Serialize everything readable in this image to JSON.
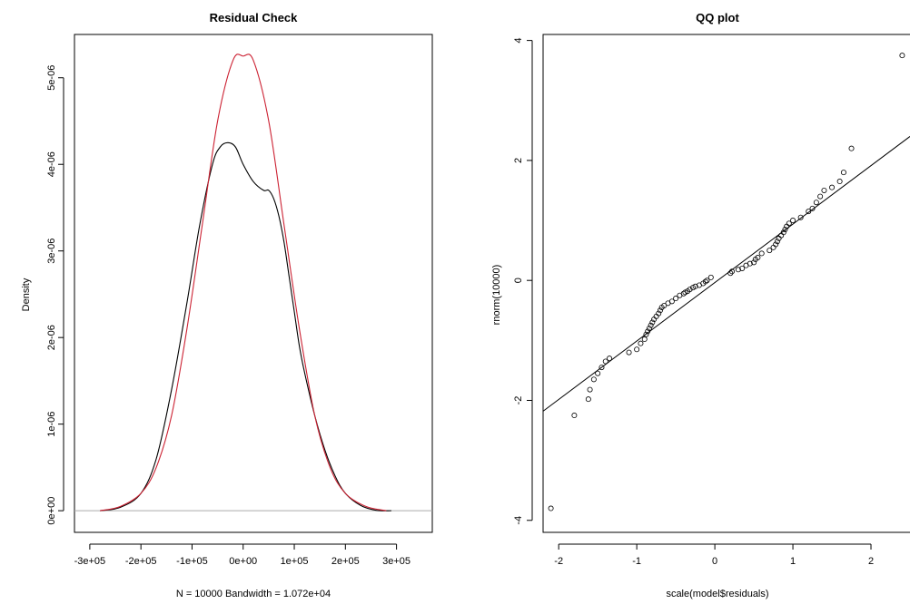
{
  "chart_data": [
    {
      "type": "line",
      "title": "Residual Check",
      "xlabel": "N = 10000   Bandwidth = 1.072e+04",
      "ylabel": "Density",
      "xlim": [
        -330000,
        370000
      ],
      "ylim": [
        -2.5e-07,
        5.5e-06
      ],
      "xticks": [
        -300000,
        -200000,
        -100000,
        0,
        100000,
        200000,
        300000
      ],
      "xtick_labels": [
        "-3e+05",
        "-2e+05",
        "-1e+05",
        "0e+00",
        "1e+05",
        "2e+05",
        "3e+05"
      ],
      "yticks": [
        0,
        1e-06,
        2e-06,
        3e-06,
        4e-06,
        5e-06
      ],
      "ytick_labels": [
        "0e+00",
        "1e-06",
        "2e-06",
        "3e-06",
        "4e-06",
        "5e-06"
      ],
      "hline": 0,
      "series": [
        {
          "color": "#000000",
          "x": [
            -280000,
            -240000,
            -200000,
            -170000,
            -140000,
            -110000,
            -85000,
            -60000,
            -45000,
            -30000,
            -15000,
            0,
            20000,
            40000,
            50000,
            60000,
            70000,
            80000,
            90000,
            100000,
            110000,
            120000,
            140000,
            160000,
            180000,
            200000,
            230000,
            260000,
            290000
          ],
          "y": [
            0.0,
            4e-08,
            2e-07,
            6e-07,
            1.4e-06,
            2.4e-06,
            3.3e-06,
            4e-06,
            4.2e-06,
            4.25e-06,
            4.2e-06,
            4e-06,
            3.8e-06,
            3.7e-06,
            3.7e-06,
            3.6e-06,
            3.4e-06,
            3.1e-06,
            2.7e-06,
            2.3e-06,
            1.9e-06,
            1.6e-06,
            1.1e-06,
            7e-07,
            4e-07,
            2e-07,
            6e-08,
            5e-09,
            0.0
          ]
        },
        {
          "color": "#cc2233",
          "x": [
            -280000,
            -240000,
            -200000,
            -170000,
            -140000,
            -110000,
            -80000,
            -50000,
            -20000,
            0,
            20000,
            50000,
            80000,
            110000,
            140000,
            170000,
            200000,
            240000,
            280000
          ],
          "y": [
            0.0,
            5e-08,
            2e-07,
            5e-07,
            1.1e-06,
            2.1e-06,
            3.3e-06,
            4.5e-06,
            5.2e-06,
            5.25e-06,
            5.2e-06,
            4.5e-06,
            3.3e-06,
            2.1e-06,
            1.1e-06,
            5e-07,
            2e-07,
            5e-08,
            0.0
          ]
        }
      ]
    },
    {
      "type": "scatter",
      "title": "QQ plot",
      "xlabel": "scale(model$residuals)",
      "ylabel": "rnorm(10000)",
      "xlim": [
        -2.2,
        2.5
      ],
      "ylim": [
        -4.2,
        4.1
      ],
      "xticks": [
        -2,
        -1,
        0,
        1,
        2
      ],
      "xtick_labels": [
        "-2",
        "-1",
        "0",
        "1",
        "2"
      ],
      "yticks": [
        -4,
        -2,
        0,
        2,
        4
      ],
      "ytick_labels": [
        "-4",
        "-2",
        "0",
        "2",
        "4"
      ],
      "reference_line": {
        "x": [
          -2.2,
          2.5
        ],
        "y": [
          -2.18,
          2.4
        ]
      },
      "series": [
        {
          "x": [
            -2.1,
            -1.8,
            -1.62,
            -1.6,
            -1.55,
            -1.5,
            -1.45,
            -1.4,
            -1.35,
            -1.1,
            -1.0,
            -0.95,
            -0.9,
            -0.88,
            -0.86,
            -0.84,
            -0.82,
            -0.8,
            -0.78,
            -0.75,
            -0.72,
            -0.7,
            -0.68,
            -0.65,
            -0.6,
            -0.55,
            -0.5,
            -0.45,
            -0.4,
            -0.38,
            -0.35,
            -0.32,
            -0.28,
            -0.25,
            -0.2,
            -0.15,
            -0.12,
            -0.1,
            -0.05,
            0.2,
            0.22,
            0.3,
            0.35,
            0.4,
            0.45,
            0.5,
            0.52,
            0.55,
            0.6,
            0.7,
            0.75,
            0.78,
            0.8,
            0.82,
            0.85,
            0.88,
            0.9,
            0.92,
            0.95,
            1.0,
            1.1,
            1.2,
            1.25,
            1.3,
            1.35,
            1.4,
            1.5,
            1.6,
            1.65,
            1.75,
            2.4
          ],
          "y": [
            -3.8,
            -2.25,
            -1.98,
            -1.82,
            -1.65,
            -1.55,
            -1.45,
            -1.35,
            -1.3,
            -1.2,
            -1.15,
            -1.05,
            -0.98,
            -0.9,
            -0.85,
            -0.8,
            -0.75,
            -0.7,
            -0.65,
            -0.6,
            -0.55,
            -0.5,
            -0.45,
            -0.42,
            -0.38,
            -0.35,
            -0.3,
            -0.25,
            -0.22,
            -0.2,
            -0.18,
            -0.15,
            -0.12,
            -0.1,
            -0.08,
            -0.05,
            -0.02,
            0.0,
            0.05,
            0.12,
            0.15,
            0.18,
            0.2,
            0.25,
            0.28,
            0.3,
            0.35,
            0.38,
            0.45,
            0.5,
            0.55,
            0.6,
            0.65,
            0.7,
            0.75,
            0.8,
            0.85,
            0.9,
            0.95,
            1.0,
            1.05,
            1.15,
            1.2,
            1.3,
            1.4,
            1.5,
            1.55,
            1.65,
            1.8,
            2.2,
            3.75
          ]
        }
      ]
    }
  ]
}
